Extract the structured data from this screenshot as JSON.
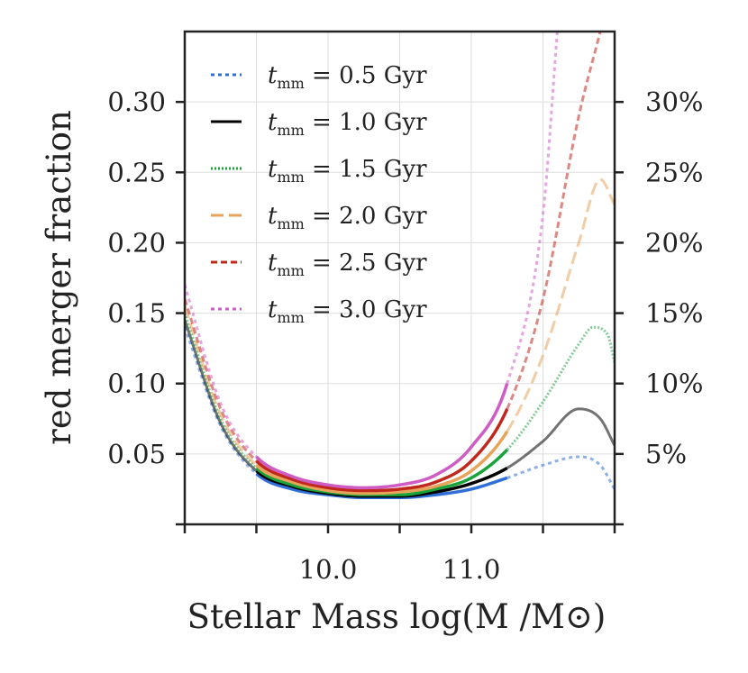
{
  "chart_data": {
    "type": "line",
    "xlabel": "Stellar Mass log(M /M⊙)",
    "ylabel": "red merger fraction",
    "xlim": [
      9.0,
      12.0
    ],
    "ylim": [
      0.0,
      0.35
    ],
    "right_ylim": [
      0,
      35
    ],
    "grid": true,
    "legend_position": "top-left",
    "x_ticks": [
      {
        "value": 10.0,
        "label": "10.0"
      },
      {
        "value": 11.0,
        "label": "11.0"
      }
    ],
    "y_ticks": [
      {
        "value": 0.05,
        "label": "0.05"
      },
      {
        "value": 0.1,
        "label": "0.10"
      },
      {
        "value": 0.15,
        "label": "0.15"
      },
      {
        "value": 0.2,
        "label": "0.20"
      },
      {
        "value": 0.25,
        "label": "0.25"
      },
      {
        "value": 0.3,
        "label": "0.30"
      }
    ],
    "right_y_ticks": [
      {
        "value": 5,
        "label": "5%"
      },
      {
        "value": 10,
        "label": "10%"
      },
      {
        "value": 15,
        "label": "15%"
      },
      {
        "value": 20,
        "label": "20%"
      },
      {
        "value": 25,
        "label": "25%"
      },
      {
        "value": 30,
        "label": "30%"
      }
    ],
    "x_minor_ticks": [
      9.0,
      9.5,
      10.5,
      11.5,
      12.0
    ],
    "y_minor_ticks": [
      0.0
    ],
    "solid_range": [
      9.5,
      11.25
    ],
    "series": [
      {
        "name": "t_mm = 0.5 Gyr",
        "label_main": "t",
        "label_sub": "mm",
        "label_rest": " = 0.5 Gyr",
        "color": "#2f6fd6",
        "dash": "4,4",
        "x": [
          9.0,
          9.25,
          9.5,
          9.75,
          10.0,
          10.25,
          10.5,
          10.75,
          11.0,
          11.25,
          11.5,
          11.75,
          11.9,
          12.0
        ],
        "y": [
          0.14,
          0.07,
          0.036,
          0.025,
          0.021,
          0.019,
          0.019,
          0.021,
          0.025,
          0.033,
          0.042,
          0.048,
          0.042,
          0.025
        ]
      },
      {
        "name": "t_mm = 1.0 Gyr",
        "label_main": "t",
        "label_sub": "mm",
        "label_rest": " = 1.0 Gyr",
        "color": "#000000",
        "dash": "",
        "x": [
          9.0,
          9.25,
          9.5,
          9.75,
          10.0,
          10.25,
          10.5,
          10.75,
          11.0,
          11.25,
          11.5,
          11.75,
          11.9,
          12.0
        ],
        "y": [
          0.145,
          0.072,
          0.038,
          0.027,
          0.022,
          0.02,
          0.02,
          0.023,
          0.029,
          0.04,
          0.059,
          0.082,
          0.075,
          0.056
        ]
      },
      {
        "name": "t_mm = 1.5 Gyr",
        "label_main": "t",
        "label_sub": "mm",
        "label_rest": " = 1.5 Gyr",
        "color": "#1aa33a",
        "dash": "2,2",
        "x": [
          9.0,
          9.25,
          9.5,
          9.75,
          10.0,
          10.25,
          10.5,
          10.75,
          11.0,
          11.25,
          11.5,
          11.75,
          11.85,
          11.95,
          12.0
        ],
        "y": [
          0.15,
          0.075,
          0.04,
          0.028,
          0.023,
          0.021,
          0.021,
          0.025,
          0.033,
          0.053,
          0.087,
          0.128,
          0.14,
          0.135,
          0.115
        ]
      },
      {
        "name": "t_mm = 2.0 Gyr",
        "label_main": "t",
        "label_sub": "mm",
        "label_rest": " = 2.0 Gyr",
        "color": "#e8a35a",
        "dash": "14,6",
        "x": [
          9.0,
          9.25,
          9.5,
          9.75,
          10.0,
          10.25,
          10.5,
          10.75,
          11.0,
          11.25,
          11.5,
          11.75,
          11.9,
          12.0
        ],
        "y": [
          0.155,
          0.078,
          0.042,
          0.03,
          0.024,
          0.022,
          0.023,
          0.027,
          0.038,
          0.066,
          0.12,
          0.2,
          0.245,
          0.227
        ]
      },
      {
        "name": "t_mm = 2.5 Gyr",
        "label_main": "t",
        "label_sub": "mm",
        "label_rest": " = 2.5 Gyr",
        "color": "#c0281e",
        "dash": "7,4",
        "x": [
          9.0,
          9.25,
          9.5,
          9.75,
          10.0,
          10.25,
          10.5,
          10.75,
          11.0,
          11.25,
          11.5,
          11.75,
          11.9
        ],
        "y": [
          0.16,
          0.082,
          0.045,
          0.032,
          0.026,
          0.024,
          0.025,
          0.03,
          0.045,
          0.082,
          0.16,
          0.29,
          0.35
        ]
      },
      {
        "name": "t_mm = 3.0 Gyr",
        "label_main": "t",
        "label_sub": "mm",
        "label_rest": " = 3.0 Gyr",
        "color": "#cf5bc4",
        "dash": "4,4",
        "x": [
          9.0,
          9.25,
          9.5,
          9.75,
          10.0,
          10.25,
          10.5,
          10.75,
          11.0,
          11.25,
          11.5,
          11.6
        ],
        "y": [
          0.17,
          0.086,
          0.048,
          0.034,
          0.028,
          0.026,
          0.028,
          0.035,
          0.055,
          0.1,
          0.22,
          0.35
        ]
      }
    ]
  }
}
